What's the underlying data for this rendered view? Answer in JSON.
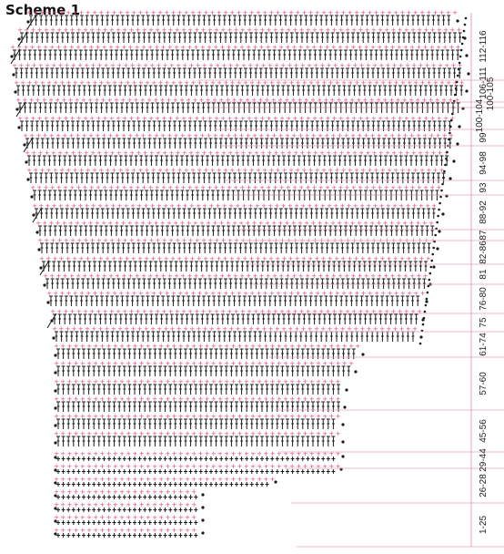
{
  "title": "Scheme 1",
  "colors": {
    "stitch": "#1a1a1a",
    "pink": "#e8457a",
    "divider": "#e6a0b8",
    "label": "#222222"
  },
  "symbols": {
    "tall": "double-crochet",
    "short": "single-crochet",
    "dot": "chain-dot",
    "pink": "pink-marker"
  },
  "row_labels": [
    "112-116",
    "106-111",
    "100-105",
    "100-104",
    "99",
    "94-98",
    "93",
    "88-92",
    "87",
    "82-86",
    "81",
    "76-80",
    "75",
    "61-74",
    "57-60",
    "45-56",
    "29-44",
    "26-28",
    "1-25"
  ]
}
